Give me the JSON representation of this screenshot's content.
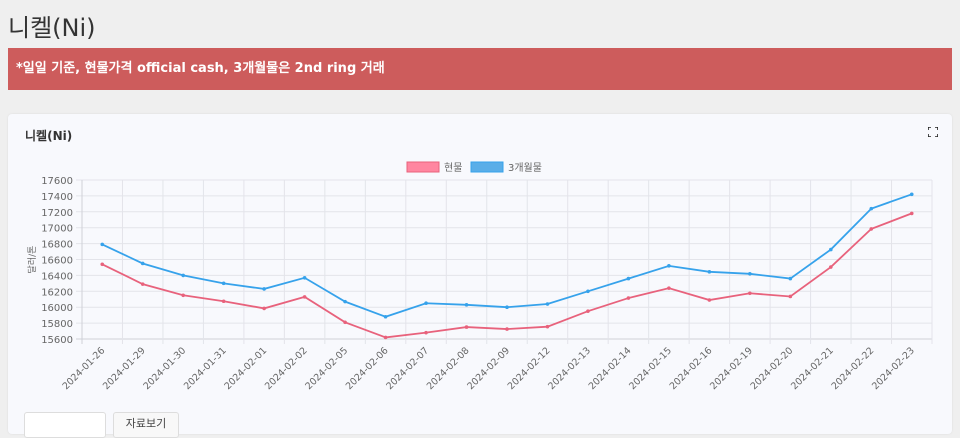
{
  "page": {
    "title": "니켈(Ni)",
    "notice": "*일일 기준, 현물가격 official cash, 3개월물은 2nd ring 거래"
  },
  "card": {
    "title": "니켈(Ni)",
    "expand_icon": "expand-icon",
    "button_label": "자료보기"
  },
  "colors": {
    "spot": "#ff6384",
    "spot_line": "#e8627c",
    "forward": "#36a2eb",
    "notice_bg": "#cd5c5c"
  },
  "chart_data": {
    "type": "line",
    "title": "",
    "xlabel": "",
    "ylabel": "달러/톤",
    "ylim": [
      15600,
      17600
    ],
    "yticks": [
      15600,
      15800,
      16000,
      16200,
      16400,
      16600,
      16800,
      17000,
      17200,
      17400,
      17600
    ],
    "grid": true,
    "legend_position": "top",
    "categories": [
      "2024-01-26",
      "2024-01-29",
      "2024-01-30",
      "2024-01-31",
      "2024-02-01",
      "2024-02-02",
      "2024-02-05",
      "2024-02-06",
      "2024-02-07",
      "2024-02-08",
      "2024-02-09",
      "2024-02-12",
      "2024-02-13",
      "2024-02-14",
      "2024-02-15",
      "2024-02-16",
      "2024-02-19",
      "2024-02-20",
      "2024-02-21",
      "2024-02-22",
      "2024-02-23"
    ],
    "series": [
      {
        "name": "현물",
        "values": [
          16540,
          16290,
          16150,
          16075,
          15985,
          16130,
          15810,
          15620,
          15680,
          15750,
          15725,
          15755,
          15950,
          16115,
          16240,
          16090,
          16175,
          16135,
          16505,
          16985,
          17180
        ]
      },
      {
        "name": "3개월물",
        "values": [
          16790,
          16550,
          16400,
          16300,
          16230,
          16370,
          16070,
          15880,
          16050,
          16030,
          16000,
          16040,
          16200,
          16360,
          16520,
          16445,
          16420,
          16360,
          16725,
          17240,
          17420
        ]
      }
    ]
  }
}
